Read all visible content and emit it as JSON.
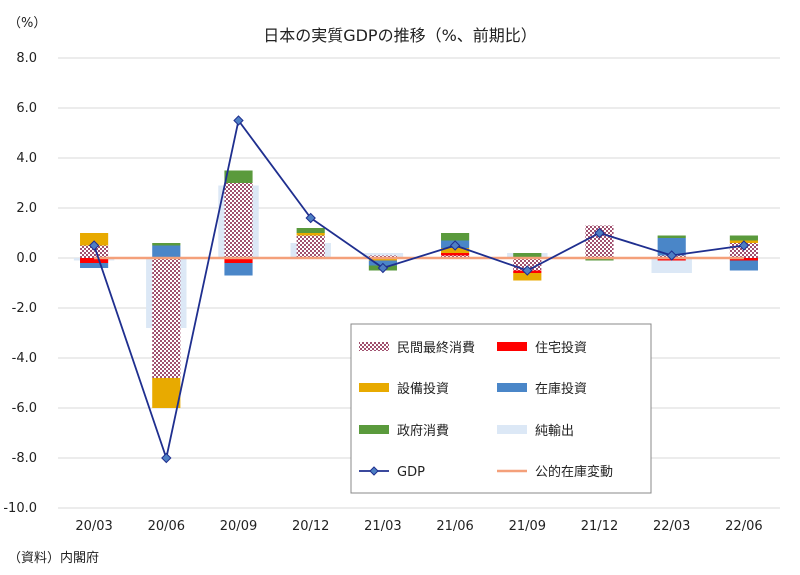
{
  "chart_data": {
    "type": "bar",
    "title": "日本の実質GDPの推移（%、前期比）",
    "unit_label": "（%）",
    "source_note": "（資料）内閣府",
    "categories": [
      "20/03",
      "20/06",
      "20/09",
      "20/12",
      "21/03",
      "21/06",
      "21/09",
      "21/12",
      "22/03",
      "22/06"
    ],
    "ylim": [
      -10,
      8
    ],
    "yticks": [
      -10,
      -8,
      -6,
      -4,
      -2,
      0,
      2,
      4,
      6,
      8
    ],
    "ytick_labels": [
      "-10.0",
      "-8.0",
      "-6.0",
      "-4.0",
      "-2.0",
      "0.0",
      "2.0",
      "4.0",
      "6.0",
      "8.0"
    ],
    "grid": true,
    "legend_position": "bottom-right",
    "series": [
      {
        "name": "民間最終消費",
        "kind": "bar",
        "color": "#a0506e",
        "pattern": "checker",
        "values": [
          0.5,
          -4.8,
          3.0,
          0.9,
          0.1,
          0.1,
          -0.5,
          1.3,
          0.1,
          0.6
        ]
      },
      {
        "name": "住宅投資",
        "kind": "bar",
        "color": "#ff0000",
        "values": [
          -0.2,
          0.0,
          -0.2,
          0.0,
          0.0,
          0.1,
          -0.1,
          0.0,
          -0.1,
          -0.1
        ]
      },
      {
        "name": "設備投資",
        "kind": "bar",
        "color": "#e8aa00",
        "values": [
          0.5,
          -1.2,
          0.0,
          0.1,
          -0.1,
          0.2,
          -0.3,
          0.0,
          0.0,
          0.1
        ]
      },
      {
        "name": "在庫投資",
        "kind": "bar",
        "color": "#4a86c8",
        "values": [
          -0.2,
          0.5,
          -0.5,
          0.0,
          -0.2,
          0.3,
          0.0,
          0.0,
          0.7,
          -0.4
        ]
      },
      {
        "name": "政府消費",
        "kind": "bar",
        "color": "#5a9a3c",
        "values": [
          0.0,
          0.1,
          0.5,
          0.2,
          -0.2,
          0.3,
          0.2,
          -0.1,
          0.1,
          0.2
        ]
      },
      {
        "name": "純輸出",
        "kind": "bar",
        "color": "#dce8f6",
        "values": [
          -0.1,
          -2.8,
          2.9,
          0.6,
          0.2,
          0.0,
          0.2,
          0.0,
          -0.6,
          0.0
        ]
      },
      {
        "name": "GDP",
        "kind": "line",
        "color": "#1f2f8f",
        "values": [
          0.5,
          -8.0,
          5.5,
          1.6,
          -0.4,
          0.5,
          -0.5,
          1.0,
          0.1,
          0.5
        ]
      },
      {
        "name": "公的在庫変動",
        "kind": "line",
        "color": "#f4a07a",
        "values": [
          0.0,
          0.0,
          0.0,
          0.0,
          0.0,
          0.0,
          0.0,
          0.0,
          0.0,
          0.0
        ]
      }
    ]
  }
}
